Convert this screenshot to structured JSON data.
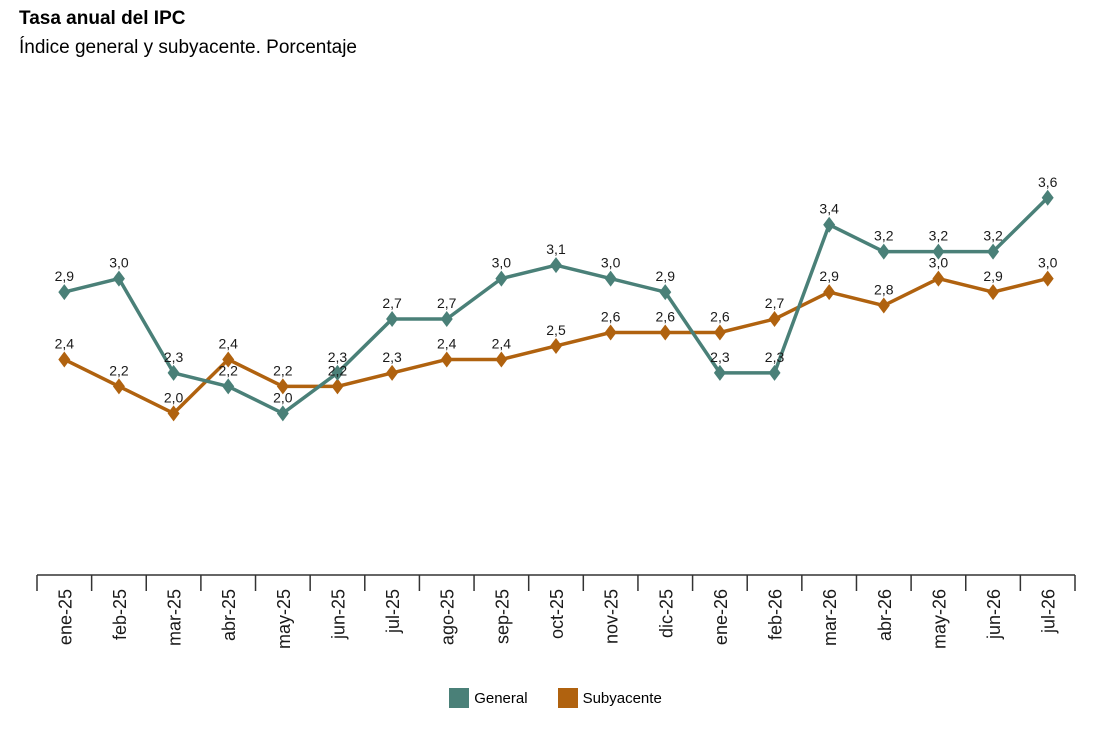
{
  "chart_data": {
    "type": "line",
    "title": "Tasa anual del IPC",
    "subtitle": "Índice general y subyacente. Porcentaje",
    "categories": [
      "ene-25",
      "feb-25",
      "mar-25",
      "abr-25",
      "may-25",
      "jun-25",
      "jul-25",
      "ago-25",
      "sep-25",
      "oct-25",
      "nov-25",
      "dic-25",
      "ene-26",
      "feb-26",
      "mar-26",
      "abr-26",
      "may-26",
      "jun-26",
      "jul-26"
    ],
    "series": [
      {
        "name": "General",
        "color": "#4a8078",
        "values": [
          2.9,
          3.0,
          2.3,
          2.2,
          2.0,
          2.3,
          2.7,
          2.7,
          3.0,
          3.1,
          3.0,
          2.9,
          2.3,
          2.3,
          3.4,
          3.2,
          3.2,
          3.2,
          3.6
        ],
        "labels": [
          "2,9",
          "3,0",
          "2,3",
          "2,2",
          "2,0",
          "2,3",
          "2,7",
          "2,7",
          "3,0",
          "3,1",
          "3,0",
          "2,9",
          "2,3",
          "2,3",
          "3,4",
          "3,2",
          "3,2",
          "3,2",
          "3,6"
        ]
      },
      {
        "name": "Subyacente",
        "color": "#b0620f",
        "values": [
          2.4,
          2.2,
          2.0,
          2.4,
          2.2,
          2.2,
          2.3,
          2.4,
          2.4,
          2.5,
          2.6,
          2.6,
          2.6,
          2.7,
          2.9,
          2.8,
          3.0,
          2.9,
          3.0
        ],
        "labels": [
          "2,4",
          "2,2",
          "2,0",
          "2,4",
          "2,2",
          "2,2",
          "2,3",
          "2,4",
          "2,4",
          "2,5",
          "2,6",
          "2,6",
          "2,6",
          "2,7",
          "2,9",
          "2,8",
          "3,0",
          "2,9",
          "3,0"
        ]
      }
    ],
    "xlabel": "",
    "ylabel": "",
    "ylim": [
      0.8,
      4.4
    ],
    "grid": false,
    "legend": "bottom-center"
  }
}
